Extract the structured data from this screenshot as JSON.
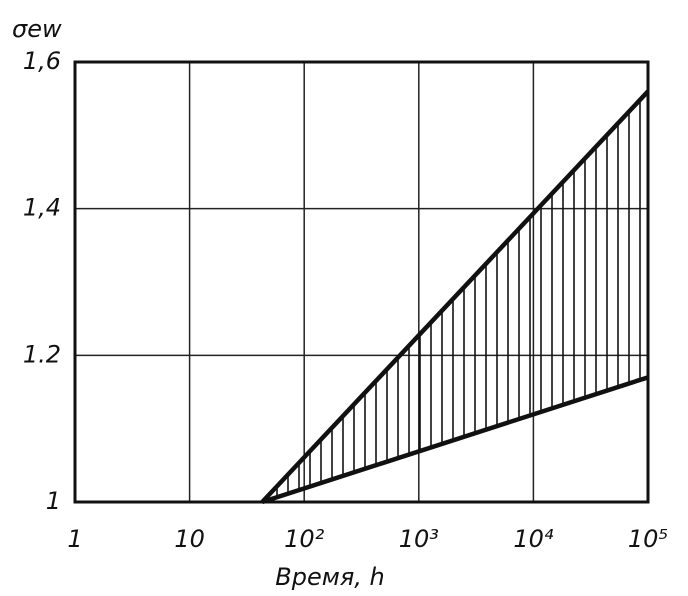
{
  "chart_data": {
    "type": "line",
    "y_label": "σew",
    "x_label": "Время, h",
    "xlog": true,
    "xlim": [
      1,
      100000
    ],
    "xticks": [
      1,
      10,
      {
        "value": 100,
        "label": "10²"
      },
      {
        "value": 1000,
        "label": "10³"
      },
      {
        "value": 10000,
        "label": "10⁴"
      },
      {
        "value": 100000,
        "label": "10⁵"
      }
    ],
    "ylim": [
      1,
      1.6
    ],
    "yticks": [
      1,
      1.2,
      {
        "value": 1.4,
        "label": "1,4"
      },
      {
        "value": 1.6,
        "label": "1,6"
      }
    ],
    "grid": true,
    "hatch_between": true,
    "series": [
      {
        "color": "#111111",
        "x": [
          43,
          100000
        ],
        "values": [
          1.0,
          1.56
        ]
      },
      {
        "color": "#111111",
        "x": [
          43,
          100000
        ],
        "values": [
          1.0,
          1.17
        ]
      }
    ]
  }
}
